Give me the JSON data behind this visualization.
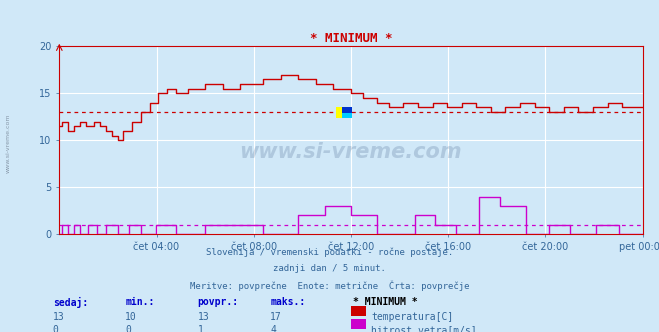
{
  "title": "* MINIMUM *",
  "bg_color": "#d0e8f8",
  "plot_bg_color": "#d0e8f8",
  "grid_color": "#ffffff",
  "temp_color": "#cc0000",
  "wind_color": "#cc00cc",
  "avg_temp_color": "#cc0000",
  "avg_wind_color": "#cc00cc",
  "avg_temp": 13,
  "avg_wind": 1,
  "text_color": "#336699",
  "subtitle1": "Slovenija / vremenski podatki - ročne postaje.",
  "subtitle2": "zadnji dan / 5 minut.",
  "subtitle3": "Meritve: povprečne  Enote: metrične  Črta: povprečje",
  "legend_title": "* MINIMUM *",
  "legend_temp_label": "temperatura[C]",
  "legend_wind_label": "hitrost vetra[m/s]",
  "stat_headers": [
    "sedaj:",
    "min.:",
    "povpr.:",
    "maks.:"
  ],
  "stat_temp": [
    13,
    10,
    13,
    17
  ],
  "stat_wind": [
    0,
    0,
    1,
    4
  ],
  "ylim": [
    0,
    20
  ],
  "ytick_vals": [
    0,
    5,
    10,
    15,
    20
  ],
  "ytick_labels": [
    "0",
    "5",
    "10",
    "15",
    "20"
  ],
  "xtick_labels": [
    "čet 04:00",
    "čet 08:00",
    "čet 12:00",
    "čet 16:00",
    "čet 20:00",
    "pet 00:00"
  ],
  "xtick_positions": [
    0.1667,
    0.3333,
    0.5,
    0.6667,
    0.8333,
    1.0
  ],
  "temp_x": [
    0,
    0.005,
    0.005,
    0.015,
    0.015,
    0.025,
    0.025,
    0.035,
    0.035,
    0.045,
    0.045,
    0.06,
    0.06,
    0.07,
    0.07,
    0.08,
    0.08,
    0.09,
    0.09,
    0.1,
    0.1,
    0.11,
    0.11,
    0.125,
    0.125,
    0.14,
    0.14,
    0.155,
    0.155,
    0.17,
    0.17,
    0.185,
    0.185,
    0.2,
    0.2,
    0.22,
    0.22,
    0.25,
    0.25,
    0.28,
    0.28,
    0.31,
    0.31,
    0.35,
    0.35,
    0.38,
    0.38,
    0.41,
    0.41,
    0.44,
    0.44,
    0.47,
    0.47,
    0.5,
    0.5,
    0.52,
    0.52,
    0.545,
    0.545,
    0.565,
    0.565,
    0.59,
    0.59,
    0.615,
    0.615,
    0.64,
    0.64,
    0.665,
    0.665,
    0.69,
    0.69,
    0.715,
    0.715,
    0.74,
    0.74,
    0.765,
    0.765,
    0.79,
    0.79,
    0.815,
    0.815,
    0.84,
    0.84,
    0.865,
    0.865,
    0.89,
    0.89,
    0.915,
    0.915,
    0.94,
    0.94,
    0.965,
    0.965,
    1.0
  ],
  "temp_y": [
    11.5,
    11.5,
    12,
    12,
    11,
    11,
    11.5,
    11.5,
    12,
    12,
    11.5,
    11.5,
    12,
    12,
    11.5,
    11.5,
    11,
    11,
    10.5,
    10.5,
    10,
    10,
    11,
    11,
    12,
    12,
    13,
    13,
    14,
    14,
    15,
    15,
    15.5,
    15.5,
    15,
    15,
    15.5,
    15.5,
    16,
    16,
    15.5,
    15.5,
    16,
    16,
    16.5,
    16.5,
    17,
    17,
    16.5,
    16.5,
    16,
    16,
    15.5,
    15.5,
    15,
    15,
    14.5,
    14.5,
    14,
    14,
    13.5,
    13.5,
    14,
    14,
    13.5,
    13.5,
    14,
    14,
    13.5,
    13.5,
    14,
    14,
    13.5,
    13.5,
    13,
    13,
    13.5,
    13.5,
    14,
    14,
    13.5,
    13.5,
    13,
    13,
    13.5,
    13.5,
    13,
    13,
    13.5,
    13.5,
    14,
    14,
    13.5,
    13.5
  ],
  "wind_x": [
    0,
    0.005,
    0.005,
    0.015,
    0.015,
    0.025,
    0.025,
    0.035,
    0.035,
    0.05,
    0.05,
    0.065,
    0.065,
    0.08,
    0.08,
    0.1,
    0.1,
    0.12,
    0.12,
    0.14,
    0.14,
    0.165,
    0.165,
    0.2,
    0.2,
    0.25,
    0.25,
    0.35,
    0.35,
    0.41,
    0.41,
    0.455,
    0.455,
    0.5,
    0.5,
    0.545,
    0.545,
    0.61,
    0.61,
    0.645,
    0.645,
    0.68,
    0.68,
    0.72,
    0.72,
    0.755,
    0.755,
    0.8,
    0.8,
    0.84,
    0.84,
    0.875,
    0.875,
    0.92,
    0.92,
    0.96,
    0.96,
    1.0
  ],
  "wind_y": [
    0,
    0,
    1,
    1,
    0,
    0,
    1,
    1,
    0,
    0,
    1,
    1,
    0,
    0,
    1,
    1,
    0,
    0,
    1,
    1,
    0,
    0,
    1,
    1,
    0,
    0,
    1,
    1,
    0,
    0,
    2,
    2,
    3,
    3,
    2,
    2,
    0,
    0,
    2,
    2,
    1,
    1,
    0,
    0,
    4,
    4,
    3,
    3,
    0,
    0,
    1,
    1,
    0,
    0,
    1,
    1,
    0,
    0
  ]
}
